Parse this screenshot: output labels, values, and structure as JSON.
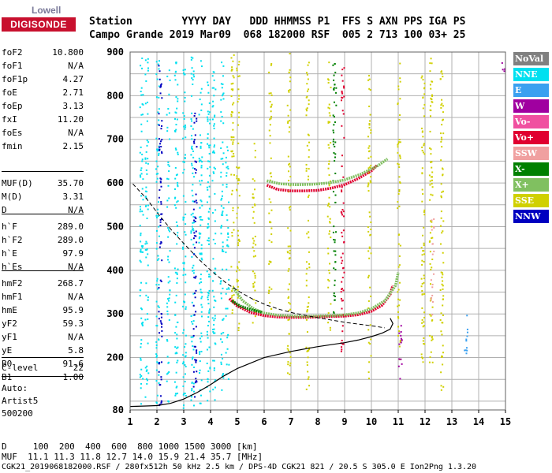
{
  "logo": {
    "top": "Lowell",
    "main": "DIGISONDE"
  },
  "header": {
    "row1": "Station        YYYY DAY   DDD HHMMSS P1  FFS S AXN PPS IGA PS",
    "row2": "Campo Grande 2019 Mar09  068 182000 RSF  005 2 713 100 03+ 25"
  },
  "parameters_block1": [
    {
      "name": "foF2",
      "value": "10.800"
    },
    {
      "name": "foF1",
      "value": "N/A"
    },
    {
      "name": "foF1p",
      "value": "4.27"
    },
    {
      "name": "foE",
      "value": "2.71"
    },
    {
      "name": "foEp",
      "value": "3.13"
    },
    {
      "name": "fxI",
      "value": "11.20"
    },
    {
      "name": "foEs",
      "value": "N/A"
    },
    {
      "name": "fmin",
      "value": "2.15"
    }
  ],
  "parameters_block2": [
    {
      "name": "MUF(D)",
      "value": "35.70"
    },
    {
      "name": "M(D)",
      "value": "3.31"
    },
    {
      "name": "D",
      "value": "N/A"
    }
  ],
  "parameters_block3": [
    {
      "name": "h`F",
      "value": "289.0"
    },
    {
      "name": "h`F2",
      "value": "289.0"
    },
    {
      "name": "h`E",
      "value": "97.9"
    },
    {
      "name": "h`Es",
      "value": "N/A"
    }
  ],
  "parameters_block4": [
    {
      "name": "hmF2",
      "value": "268.7"
    },
    {
      "name": "hmF1",
      "value": "N/A"
    },
    {
      "name": "hmE",
      "value": "95.9"
    },
    {
      "name": "yF2",
      "value": "59.3"
    },
    {
      "name": "yF1",
      "value": "N/A"
    },
    {
      "name": "yE",
      "value": "5.8"
    },
    {
      "name": "B0",
      "value": "91.6"
    },
    {
      "name": "B1",
      "value": "1.00"
    }
  ],
  "parameters_block5": [
    {
      "name": "C-level",
      "value": "22"
    }
  ],
  "misc_text": {
    "auto": "Auto:",
    "artist": "Artist5",
    "code": "500200"
  },
  "legend": [
    {
      "label": "NoVal",
      "color": "#808080"
    },
    {
      "label": "NNE",
      "color": "#00e0f0"
    },
    {
      "label": "E",
      "color": "#3aa0f0"
    },
    {
      "label": "W",
      "color": "#a000a0"
    },
    {
      "label": "Vo-",
      "color": "#f050a0"
    },
    {
      "label": "Vo+",
      "color": "#e00030"
    },
    {
      "label": "SSW",
      "color": "#f0a0a0"
    },
    {
      "label": "X-",
      "color": "#008000"
    },
    {
      "label": "X+",
      "color": "#80c060"
    },
    {
      "label": "SSE",
      "color": "#d0d000"
    },
    {
      "label": "NNW",
      "color": "#0000c0"
    }
  ],
  "footer": {
    "line1": "D     100  200  400  600  800 1000 1500 3000 [km]",
    "line2": "MUF  11.1 11.3 11.8 12.7 14.0 15.9 21.4 35.7 [MHz]",
    "line3": "CGK21_2019068182000.RSF / 280fx512h 50 kHz 2.5 km / DPS-4D CGK21 821 / 20.5 S 305.0 E Ion2Png 1.3.20"
  },
  "chart_data": {
    "type": "scatter",
    "title": "",
    "xlabel": "",
    "ylabel": "",
    "xlim": [
      1,
      15
    ],
    "ylim": [
      80,
      900
    ],
    "x_ticks": [
      "1",
      "2",
      "3",
      "4",
      "5",
      "6",
      "7",
      "8",
      "9",
      "10",
      "11",
      "12",
      "13",
      "14",
      "15"
    ],
    "y_ticks": [
      "80",
      "200",
      "300",
      "400",
      "500",
      "600",
      "700",
      "800",
      "900"
    ],
    "y_tick_values": [
      80,
      200,
      300,
      400,
      500,
      600,
      700,
      800,
      900
    ],
    "grid": true,
    "series": [
      {
        "name": "Vo+",
        "style": "trace",
        "color": "#e00030",
        "x": [
          4.7,
          5.0,
          5.5,
          6.0,
          6.5,
          7.0,
          7.5,
          8.0,
          8.5,
          9.0,
          9.5,
          10.0,
          10.4,
          10.7,
          10.8
        ],
        "y": [
          335,
          318,
          303,
          296,
          293,
          292,
          292,
          293,
          294,
          295,
          298,
          306,
          320,
          345,
          365
        ]
      },
      {
        "name": "X+",
        "style": "trace",
        "color": "#80c060",
        "x": [
          4.85,
          5.2,
          5.6,
          6.0,
          6.5,
          7.0,
          7.5,
          8.0,
          8.5,
          9.0,
          9.5,
          10.0,
          10.5,
          10.9,
          11.0
        ],
        "y": [
          360,
          330,
          312,
          302,
          297,
          295,
          294,
          295,
          296,
          298,
          302,
          312,
          330,
          365,
          395
        ]
      },
      {
        "name": "X-",
        "style": "trace",
        "color": "#008000",
        "x": [
          4.8,
          5.1,
          5.5,
          5.9
        ],
        "y": [
          330,
          318,
          310,
          304
        ]
      },
      {
        "name": "Vo+ upper",
        "style": "trace",
        "color": "#e00030",
        "x": [
          6.1,
          6.5,
          7.0,
          7.5,
          8.0,
          8.5,
          9.0,
          9.5,
          10.0,
          10.2
        ],
        "y": [
          595,
          585,
          582,
          582,
          583,
          588,
          596,
          610,
          628,
          640
        ]
      },
      {
        "name": "X+ upper",
        "style": "trace",
        "color": "#80c060",
        "x": [
          6.1,
          6.6,
          7.2,
          7.8,
          8.4,
          9.0,
          9.6,
          10.2,
          10.6
        ],
        "y": [
          605,
          598,
          596,
          597,
          600,
          607,
          620,
          638,
          655
        ]
      },
      {
        "name": "profile",
        "style": "line",
        "color": "#000000",
        "x": [
          1.0,
          1.6,
          2.0,
          2.5,
          3.0,
          3.5,
          4.0,
          4.5,
          5.0,
          6.0,
          7.0,
          8.0,
          9.0,
          9.5,
          10.0,
          10.4,
          10.7,
          10.8,
          10.7
        ],
        "y": [
          88,
          89,
          90,
          95,
          105,
          120,
          138,
          158,
          175,
          200,
          214,
          225,
          234,
          240,
          248,
          256,
          265,
          278,
          290
        ]
      },
      {
        "name": "MUF",
        "style": "dashed",
        "color": "#000000",
        "x": [
          1.1,
          1.6,
          2.1,
          2.6,
          3.1,
          3.6,
          4.1,
          4.6,
          5.1,
          5.6,
          6.1,
          6.6,
          7.1,
          7.6,
          8.1,
          8.6,
          9.1,
          9.6,
          10.1,
          10.5
        ],
        "y": [
          598,
          565,
          525,
          488,
          455,
          423,
          395,
          370,
          350,
          333,
          320,
          310,
          302,
          296,
          290,
          285,
          280,
          276,
          272,
          268
        ]
      }
    ],
    "scatter_columns": [
      {
        "x": 1.4,
        "ylo": 90,
        "yhi": 895,
        "color": "#00e0f0"
      },
      {
        "x": 1.6,
        "ylo": 100,
        "yhi": 890,
        "color": "#00e0f0"
      },
      {
        "x": 2.0,
        "ylo": 95,
        "yhi": 900,
        "color": "#00e0f0"
      },
      {
        "x": 2.1,
        "ylo": 85,
        "yhi": 880,
        "color": "#0000c0"
      },
      {
        "x": 2.4,
        "ylo": 100,
        "yhi": 870,
        "color": "#00e0f0"
      },
      {
        "x": 2.7,
        "ylo": 95,
        "yhi": 900,
        "color": "#00e0f0"
      },
      {
        "x": 3.0,
        "ylo": 85,
        "yhi": 895,
        "color": "#00e0f0"
      },
      {
        "x": 3.3,
        "ylo": 90,
        "yhi": 890,
        "color": "#00e0f0"
      },
      {
        "x": 3.4,
        "ylo": 95,
        "yhi": 780,
        "color": "#0000c0"
      },
      {
        "x": 3.6,
        "ylo": 90,
        "yhi": 900,
        "color": "#00e0f0"
      },
      {
        "x": 3.9,
        "ylo": 95,
        "yhi": 880,
        "color": "#00e0f0"
      },
      {
        "x": 4.1,
        "ylo": 100,
        "yhi": 860,
        "color": "#00e0f0"
      },
      {
        "x": 4.4,
        "ylo": 120,
        "yhi": 880,
        "color": "#00e0f0"
      },
      {
        "x": 4.6,
        "ylo": 150,
        "yhi": 700,
        "color": "#00e0f0"
      },
      {
        "x": 4.8,
        "ylo": 300,
        "yhi": 900,
        "color": "#d0d000"
      },
      {
        "x": 5.0,
        "ylo": 250,
        "yhi": 880,
        "color": "#d0d000"
      },
      {
        "x": 5.6,
        "ylo": 280,
        "yhi": 700,
        "color": "#d0d000"
      },
      {
        "x": 6.2,
        "ylo": 300,
        "yhi": 880,
        "color": "#d0d000"
      },
      {
        "x": 6.9,
        "ylo": 150,
        "yhi": 900,
        "color": "#d0d000"
      },
      {
        "x": 7.6,
        "ylo": 120,
        "yhi": 880,
        "color": "#d0d000"
      },
      {
        "x": 8.4,
        "ylo": 250,
        "yhi": 880,
        "color": "#d0d000"
      },
      {
        "x": 8.6,
        "ylo": 280,
        "yhi": 880,
        "color": "#008000"
      },
      {
        "x": 8.9,
        "ylo": 190,
        "yhi": 880,
        "color": "#e00030"
      },
      {
        "x": 9.9,
        "ylo": 150,
        "yhi": 880,
        "color": "#d0d000"
      },
      {
        "x": 11.0,
        "ylo": 190,
        "yhi": 900,
        "color": "#d0d000"
      },
      {
        "x": 11.05,
        "ylo": 150,
        "yhi": 290,
        "color": "#a000a0"
      },
      {
        "x": 11.9,
        "ylo": 160,
        "yhi": 850,
        "color": "#d0d000"
      },
      {
        "x": 12.2,
        "ylo": 180,
        "yhi": 900,
        "color": "#d0d000"
      },
      {
        "x": 12.25,
        "ylo": 280,
        "yhi": 520,
        "color": "#f0a0a0"
      },
      {
        "x": 12.6,
        "ylo": 120,
        "yhi": 880,
        "color": "#d0d000"
      },
      {
        "x": 13.5,
        "ylo": 200,
        "yhi": 300,
        "color": "#3aa0f0"
      },
      {
        "x": 14.8,
        "ylo": 390,
        "yhi": 400,
        "color": "#a000a0"
      },
      {
        "x": 14.9,
        "ylo": 850,
        "yhi": 890,
        "color": "#a000a0"
      }
    ]
  }
}
